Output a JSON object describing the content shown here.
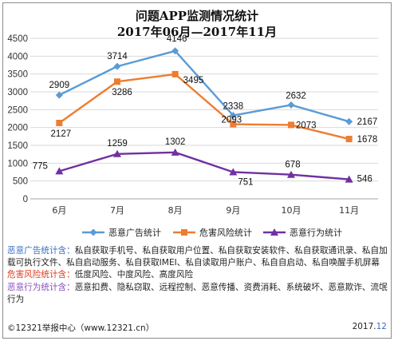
{
  "chart_data": {
    "type": "line",
    "title": [
      "问题APP监测情况统计",
      "2017年06月—2017年11月"
    ],
    "categories": [
      "6月",
      "7月",
      "8月",
      "9月",
      "10月",
      "11月"
    ],
    "ylim": [
      0,
      4500
    ],
    "yticks": [
      0,
      500,
      1000,
      1500,
      2000,
      2500,
      3000,
      3500,
      4000,
      4500
    ],
    "grid": true,
    "legend_position": "bottom",
    "series": [
      {
        "name": "恶意广告统计",
        "values": [
          2909,
          3714,
          4146,
          2338,
          2632,
          2167
        ],
        "color": "#5b9bd5",
        "marker": "diamond"
      },
      {
        "name": "危害风险统计",
        "values": [
          2127,
          3286,
          3495,
          2093,
          2073,
          1678
        ],
        "color": "#ed7d31",
        "marker": "square"
      },
      {
        "name": "恶意行为统计",
        "values": [
          775,
          1259,
          1302,
          751,
          678,
          546
        ],
        "color": "#7030a0",
        "marker": "triangle"
      }
    ]
  },
  "notes": {
    "ad_label": "恶意广告统计含：",
    "ad_text": "私自获取手机号、私自获取用户位置、私自获取安装软件、私自获取通讯录、私自加载可执行文件、私自启动服务、私自获取IMEI、私自读取用户账户、私自自启动、私自唤醒手机屏幕",
    "risk_label": "危害风险统计含：",
    "risk_text": "低度风险、中度风险、高度风险",
    "behavior_label": "恶意行为统计含：",
    "behavior_text": "恶意扣费、隐私窃取、远程控制、恶意传播、资费消耗、系统破坏、恶意欺诈、流氓行为"
  },
  "footer": {
    "source": "©12321举报中心（www.12321.cn）",
    "date_prefix": "2017.",
    "date_suffix": "12"
  }
}
